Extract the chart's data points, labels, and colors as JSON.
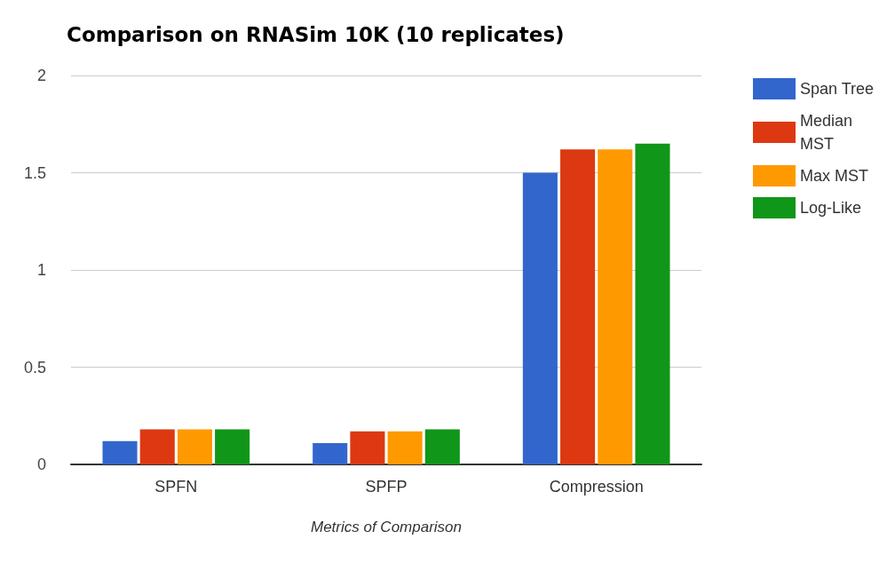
{
  "chart_data": {
    "type": "bar",
    "title": "Comparison on RNASim 10K (10 replicates)",
    "xlabel": "Metrics of Comparison",
    "categories": [
      "SPFN",
      "SPFP",
      "Compression"
    ],
    "series": [
      {
        "name": "Span Tree",
        "color": "#3366cc",
        "values": [
          0.12,
          0.11,
          1.5
        ]
      },
      {
        "name": "Median MST",
        "color": "#dc3912",
        "values": [
          0.18,
          0.17,
          1.62
        ]
      },
      {
        "name": "Max MST",
        "color": "#ff9900",
        "values": [
          0.18,
          0.17,
          1.62
        ]
      },
      {
        "name": "Log-Like",
        "color": "#109618",
        "values": [
          0.18,
          0.18,
          1.65
        ]
      }
    ],
    "ylim": [
      0,
      2
    ],
    "yticks": [
      0,
      0.5,
      1,
      1.5,
      2
    ],
    "grid": "y",
    "legend": "right"
  }
}
